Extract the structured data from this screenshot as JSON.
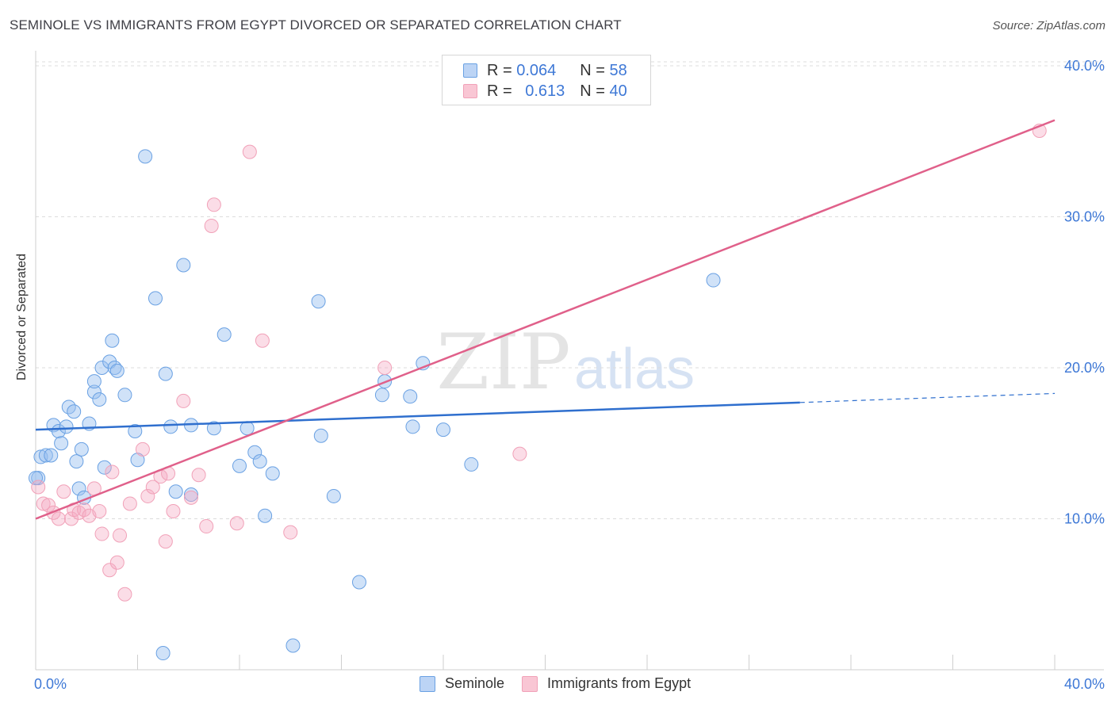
{
  "title": "SEMINOLE VS IMMIGRANTS FROM EGYPT DIVORCED OR SEPARATED CORRELATION CHART",
  "source": "Source: ZipAtlas.com",
  "watermark": {
    "zip": "ZIP",
    "atlas": "atlas"
  },
  "colors": {
    "seminole": "#6aa1e3",
    "egypt": "#f1a1b8",
    "seminole_line": "#2f6fce",
    "egypt_line": "#e0608a",
    "tick_text": "#3e78d6"
  },
  "legend_top": {
    "rows": [
      {
        "r_label": "R =",
        "r_value": "0.064",
        "n_label": "N =",
        "n_value": "58"
      },
      {
        "r_label": "R =",
        "r_value": "0.613",
        "n_label": "N =",
        "n_value": "40"
      }
    ]
  },
  "legend_bottom": {
    "items": [
      "Seminole",
      "Immigrants from Egypt"
    ]
  },
  "chart_data": {
    "type": "scatter",
    "title": "SEMINOLE VS IMMIGRANTS FROM EGYPT DIVORCED OR SEPARATED CORRELATION CHART",
    "xlabel": "",
    "ylabel": "Divorced or Separated",
    "xlim": [
      0,
      40
    ],
    "ylim": [
      0,
      41
    ],
    "x_tick_labels": [
      "0.0%",
      "40.0%"
    ],
    "y_ticks": [
      10,
      20,
      30,
      40
    ],
    "y_tick_labels": [
      "10.0%",
      "20.0%",
      "30.0%",
      "40.0%"
    ],
    "grid": true,
    "series": [
      {
        "name": "Seminole",
        "trend": {
          "x0": 0,
          "y0": 15.9,
          "x1": 30,
          "y1": 17.7,
          "dash_to": 40,
          "dash_y": 18.3
        },
        "points": [
          [
            0.1,
            12.7
          ],
          [
            0.2,
            14.1
          ],
          [
            0.4,
            14.2
          ],
          [
            0.6,
            14.2
          ],
          [
            0.7,
            16.2
          ],
          [
            0.9,
            15.8
          ],
          [
            1.0,
            15.0
          ],
          [
            1.2,
            16.1
          ],
          [
            1.3,
            17.4
          ],
          [
            1.5,
            17.1
          ],
          [
            1.6,
            13.8
          ],
          [
            1.7,
            12.0
          ],
          [
            1.8,
            14.6
          ],
          [
            1.9,
            11.4
          ],
          [
            2.1,
            16.3
          ],
          [
            2.3,
            18.4
          ],
          [
            2.3,
            19.1
          ],
          [
            2.5,
            17.9
          ],
          [
            2.6,
            20.0
          ],
          [
            2.7,
            13.4
          ],
          [
            2.9,
            20.4
          ],
          [
            3.0,
            21.8
          ],
          [
            3.1,
            20.0
          ],
          [
            3.2,
            19.8
          ],
          [
            3.5,
            18.2
          ],
          [
            3.9,
            15.8
          ],
          [
            4.0,
            13.9
          ],
          [
            4.3,
            34.0
          ],
          [
            4.7,
            24.6
          ],
          [
            5.0,
            1.1
          ],
          [
            5.1,
            19.6
          ],
          [
            5.3,
            16.1
          ],
          [
            5.5,
            11.8
          ],
          [
            5.8,
            26.8
          ],
          [
            6.1,
            11.6
          ],
          [
            6.1,
            16.2
          ],
          [
            7.0,
            16.0
          ],
          [
            7.4,
            22.2
          ],
          [
            8.0,
            13.5
          ],
          [
            8.3,
            16.0
          ],
          [
            8.6,
            14.4
          ],
          [
            8.8,
            13.8
          ],
          [
            9.0,
            10.2
          ],
          [
            9.3,
            13.0
          ],
          [
            10.1,
            1.6
          ],
          [
            11.1,
            24.4
          ],
          [
            11.2,
            15.5
          ],
          [
            11.7,
            11.5
          ],
          [
            12.7,
            5.8
          ],
          [
            13.6,
            18.2
          ],
          [
            13.7,
            19.1
          ],
          [
            14.7,
            18.1
          ],
          [
            14.8,
            16.1
          ],
          [
            15.2,
            20.3
          ],
          [
            16.0,
            15.9
          ],
          [
            17.1,
            13.6
          ],
          [
            26.6,
            25.8
          ],
          [
            0.0,
            12.7
          ]
        ]
      },
      {
        "name": "Immigrants from Egypt",
        "trend": {
          "x0": 0,
          "y0": 10.0,
          "x1": 40,
          "y1": 36.4
        },
        "points": [
          [
            0.1,
            12.1
          ],
          [
            0.3,
            11.0
          ],
          [
            0.5,
            10.9
          ],
          [
            0.7,
            10.4
          ],
          [
            0.9,
            10.0
          ],
          [
            1.1,
            11.8
          ],
          [
            1.4,
            10.0
          ],
          [
            1.5,
            10.6
          ],
          [
            1.7,
            10.4
          ],
          [
            1.9,
            10.6
          ],
          [
            2.1,
            10.2
          ],
          [
            2.3,
            12.0
          ],
          [
            2.5,
            10.5
          ],
          [
            2.6,
            9.0
          ],
          [
            2.9,
            6.6
          ],
          [
            3.0,
            13.1
          ],
          [
            3.2,
            7.1
          ],
          [
            3.3,
            8.9
          ],
          [
            3.5,
            5.0
          ],
          [
            3.7,
            11.0
          ],
          [
            4.2,
            14.6
          ],
          [
            4.4,
            11.5
          ],
          [
            4.6,
            12.1
          ],
          [
            4.9,
            12.8
          ],
          [
            5.1,
            8.5
          ],
          [
            5.2,
            13.0
          ],
          [
            5.4,
            10.5
          ],
          [
            5.8,
            17.8
          ],
          [
            6.1,
            11.4
          ],
          [
            6.4,
            12.9
          ],
          [
            6.7,
            9.5
          ],
          [
            6.9,
            29.4
          ],
          [
            7.0,
            30.8
          ],
          [
            7.9,
            9.7
          ],
          [
            8.4,
            34.3
          ],
          [
            8.9,
            21.8
          ],
          [
            10.0,
            9.1
          ],
          [
            13.7,
            20.0
          ],
          [
            19.0,
            14.3
          ],
          [
            39.4,
            35.7
          ]
        ]
      }
    ]
  }
}
